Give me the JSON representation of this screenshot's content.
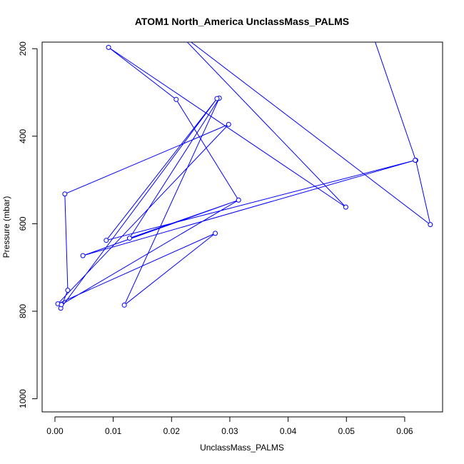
{
  "chart_data": {
    "type": "line",
    "title": "ATOM1 North_America UnclassMass_PALMS",
    "xlabel": "UnclassMass_PALMS",
    "ylabel": "Pressure (mbar)",
    "xlim": [
      -0.0022,
      0.0665
    ],
    "ylim": [
      1030,
      185
    ],
    "y_reversed": true,
    "x_ticks": [
      0.0,
      0.01,
      0.02,
      0.03,
      0.04,
      0.05,
      0.06
    ],
    "x_tick_labels": [
      "0.00",
      "0.01",
      "0.02",
      "0.03",
      "0.04",
      "0.05",
      "0.06"
    ],
    "y_ticks": [
      200,
      400,
      600,
      800,
      1000
    ],
    "y_tick_labels": [
      "200",
      "400",
      "600",
      "800",
      "1000"
    ],
    "grid": false,
    "legend": false,
    "marker": "open-circle",
    "color": "#0000ff",
    "series": [
      {
        "x": [
          0.0543,
          0.0619,
          0.0644,
          0.0209,
          0.0499,
          0.0092,
          0.0208,
          0.0315,
          0.0128,
          0.0282,
          0.0119,
          0.0275,
          0.0005,
          0.0298,
          0.0017,
          0.0022,
          0.001,
          0.0278,
          0.0088,
          0.0618,
          0.0048,
          0.0315,
          0.0011
        ],
        "y": [
          160,
          455,
          602,
          160,
          562,
          197,
          316,
          546,
          633,
          313,
          786,
          622,
          783,
          373,
          532,
          752,
          793,
          314,
          638,
          455,
          673,
          546,
          785
        ]
      }
    ]
  }
}
